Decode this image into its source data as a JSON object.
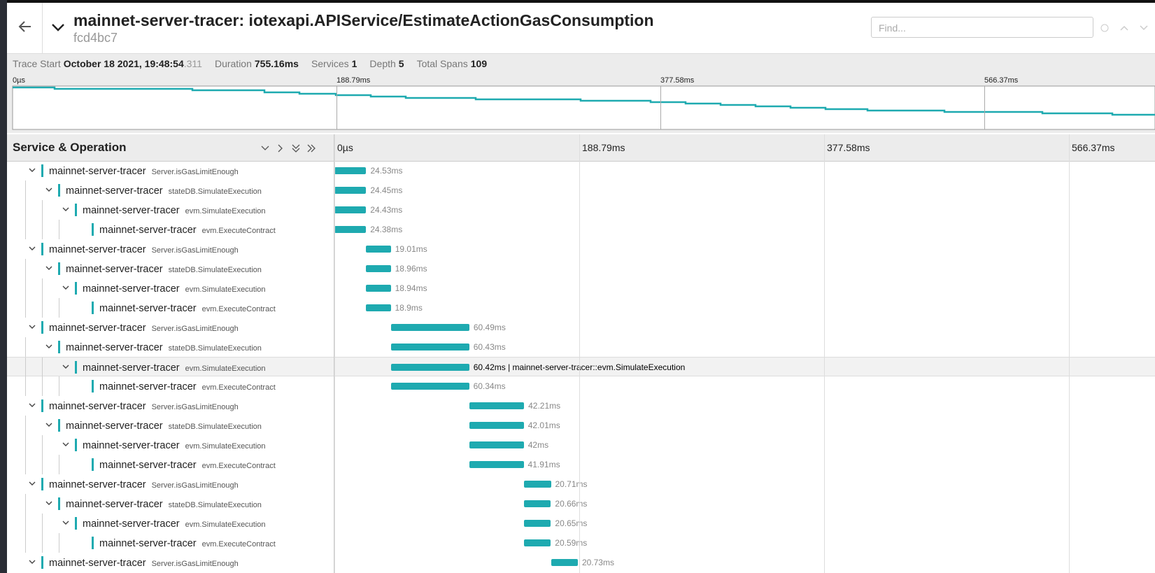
{
  "header": {
    "title": "mainnet-server-tracer: iotexapi.APIService/EstimateActionGasConsumption",
    "trace_id": "fcd4bc7",
    "find_placeholder": "Find..."
  },
  "summary": [
    {
      "label": "Trace Start",
      "value": "October 18 2021, 19:48:54",
      "suffix": ".311"
    },
    {
      "label": "Duration",
      "value": "755.16ms"
    },
    {
      "label": "Services",
      "value": "1"
    },
    {
      "label": "Depth",
      "value": "5"
    },
    {
      "label": "Total Spans",
      "value": "109"
    }
  ],
  "minimap": {
    "ticks": [
      "0µs",
      "188.79ms",
      "377.58ms",
      "566.37ms"
    ]
  },
  "timeline": {
    "column_title": "Service & Operation",
    "ticks": [
      "0µs",
      "188.79ms",
      "377.58ms",
      "566.37ms"
    ]
  },
  "spans": [
    {
      "service": "mainnet-server-tracer",
      "operation": "Server.isGasLimitEnough",
      "depth": 0,
      "duration": "24.53ms"
    },
    {
      "service": "mainnet-server-tracer",
      "operation": "stateDB.SimulateExecution",
      "depth": 1,
      "duration": "24.45ms"
    },
    {
      "service": "mainnet-server-tracer",
      "operation": "evm.SimulateExecution",
      "depth": 2,
      "duration": "24.43ms"
    },
    {
      "service": "mainnet-server-tracer",
      "operation": "evm.ExecuteContract",
      "depth": 3,
      "duration": "24.38ms"
    },
    {
      "service": "mainnet-server-tracer",
      "operation": "Server.isGasLimitEnough",
      "depth": 0,
      "duration": "19.01ms"
    },
    {
      "service": "mainnet-server-tracer",
      "operation": "stateDB.SimulateExecution",
      "depth": 1,
      "duration": "18.96ms"
    },
    {
      "service": "mainnet-server-tracer",
      "operation": "evm.SimulateExecution",
      "depth": 2,
      "duration": "18.94ms"
    },
    {
      "service": "mainnet-server-tracer",
      "operation": "evm.ExecuteContract",
      "depth": 3,
      "duration": "18.9ms"
    },
    {
      "service": "mainnet-server-tracer",
      "operation": "Server.isGasLimitEnough",
      "depth": 0,
      "duration": "60.49ms"
    },
    {
      "service": "mainnet-server-tracer",
      "operation": "stateDB.SimulateExecution",
      "depth": 1,
      "duration": "60.43ms"
    },
    {
      "service": "mainnet-server-tracer",
      "operation": "evm.SimulateExecution",
      "depth": 2,
      "duration": "60.42ms | mainnet-server-tracer::evm.SimulateExecution",
      "hovered": true
    },
    {
      "service": "mainnet-server-tracer",
      "operation": "evm.ExecuteContract",
      "depth": 3,
      "duration": "60.34ms"
    },
    {
      "service": "mainnet-server-tracer",
      "operation": "Server.isGasLimitEnough",
      "depth": 0,
      "duration": "42.21ms"
    },
    {
      "service": "mainnet-server-tracer",
      "operation": "stateDB.SimulateExecution",
      "depth": 1,
      "duration": "42.01ms"
    },
    {
      "service": "mainnet-server-tracer",
      "operation": "evm.SimulateExecution",
      "depth": 2,
      "duration": "42ms"
    },
    {
      "service": "mainnet-server-tracer",
      "operation": "evm.ExecuteContract",
      "depth": 3,
      "duration": "41.91ms"
    },
    {
      "service": "mainnet-server-tracer",
      "operation": "Server.isGasLimitEnough",
      "depth": 0,
      "duration": "20.71ms"
    },
    {
      "service": "mainnet-server-tracer",
      "operation": "stateDB.SimulateExecution",
      "depth": 1,
      "duration": "20.66ms"
    },
    {
      "service": "mainnet-server-tracer",
      "operation": "evm.SimulateExecution",
      "depth": 2,
      "duration": "20.65ms"
    },
    {
      "service": "mainnet-server-tracer",
      "operation": "evm.ExecuteContract",
      "depth": 3,
      "duration": "20.59ms"
    },
    {
      "service": "mainnet-server-tracer",
      "operation": "Server.isGasLimitEnough",
      "depth": 0,
      "duration": "20.73ms"
    }
  ]
}
